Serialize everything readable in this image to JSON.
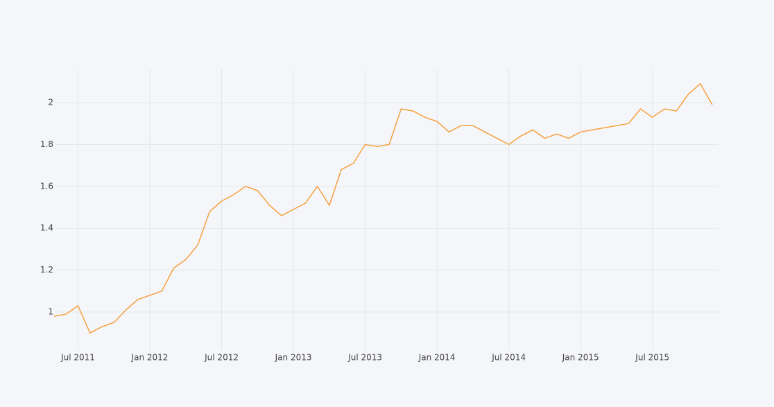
{
  "chart_data": {
    "type": "line",
    "x": [
      "2011-05",
      "2011-06",
      "2011-07",
      "2011-08",
      "2011-09",
      "2011-10",
      "2011-11",
      "2011-12",
      "2012-01",
      "2012-02",
      "2012-03",
      "2012-04",
      "2012-05",
      "2012-06",
      "2012-07",
      "2012-08",
      "2012-09",
      "2012-10",
      "2012-11",
      "2012-12",
      "2013-01",
      "2013-02",
      "2013-03",
      "2013-04",
      "2013-05",
      "2013-06",
      "2013-07",
      "2013-08",
      "2013-09",
      "2013-10",
      "2013-11",
      "2013-12",
      "2014-01",
      "2014-02",
      "2014-03",
      "2014-04",
      "2014-05",
      "2014-06",
      "2014-07",
      "2014-08",
      "2014-09",
      "2014-10",
      "2014-11",
      "2014-12",
      "2015-01",
      "2015-02",
      "2015-03",
      "2015-04",
      "2015-05",
      "2015-06",
      "2015-07",
      "2015-08",
      "2015-09",
      "2015-10",
      "2015-11",
      "2015-12"
    ],
    "series": [
      {
        "color": "#f5a03e",
        "values": [
          0.98,
          0.99,
          1.03,
          0.9,
          0.93,
          0.95,
          1.01,
          1.06,
          1.08,
          1.1,
          1.21,
          1.25,
          1.32,
          1.48,
          1.53,
          1.56,
          1.6,
          1.58,
          1.51,
          1.46,
          1.49,
          1.52,
          1.6,
          1.51,
          1.68,
          1.71,
          1.8,
          1.79,
          1.8,
          1.97,
          1.96,
          1.93,
          1.91,
          1.86,
          1.89,
          1.89,
          1.86,
          1.83,
          1.8,
          1.84,
          1.87,
          1.83,
          1.85,
          1.83,
          1.86,
          1.87,
          1.88,
          1.89,
          1.9,
          1.97,
          1.93,
          1.97,
          1.96,
          2.04,
          2.09,
          1.99
        ]
      }
    ],
    "xlim": [
      "2011-05",
      "2015-12"
    ],
    "xticks": [
      {
        "value": "2011-07",
        "label": "Jul 2011"
      },
      {
        "value": "2012-01",
        "label": "Jan 2012"
      },
      {
        "value": "2012-07",
        "label": "Jul 2012"
      },
      {
        "value": "2013-01",
        "label": "Jan 2013"
      },
      {
        "value": "2013-07",
        "label": "Jul 2013"
      },
      {
        "value": "2014-01",
        "label": "Jan 2014"
      },
      {
        "value": "2014-07",
        "label": "Jul 2014"
      },
      {
        "value": "2015-01",
        "label": "Jan 2015"
      },
      {
        "value": "2015-07",
        "label": "Jul 2015"
      }
    ],
    "ylim": [
      0.818,
      2.159
    ],
    "yticks": [
      1,
      1.2,
      1.4,
      1.6,
      1.8,
      2
    ],
    "grid": true
  }
}
